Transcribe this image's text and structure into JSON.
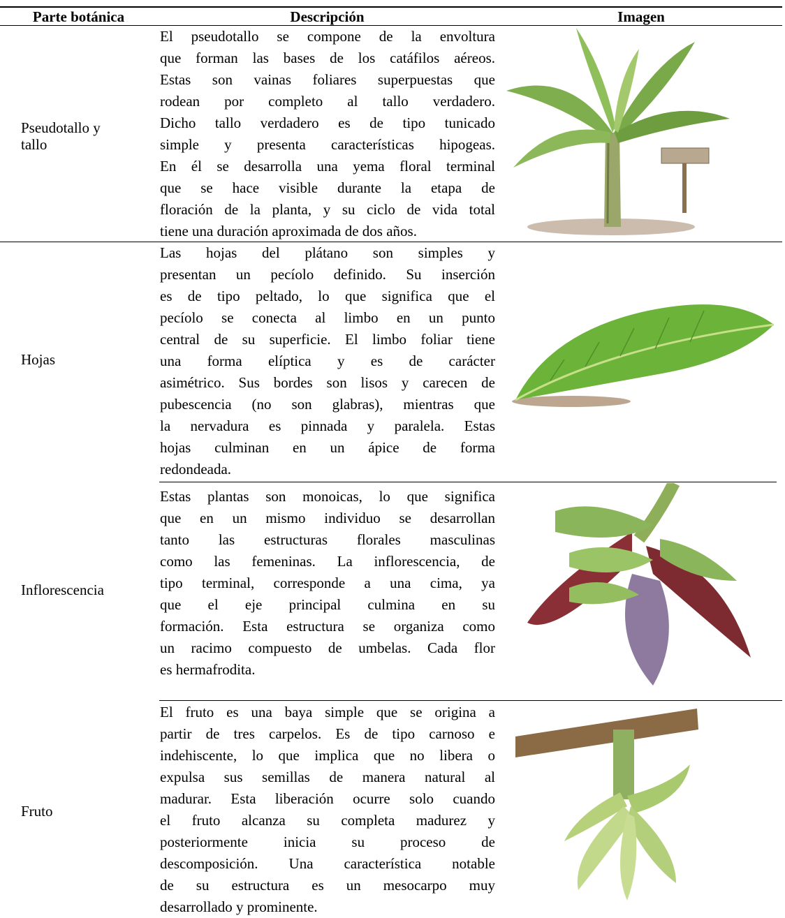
{
  "table": {
    "header": [
      "Parte botánica",
      "Descripción",
      "Imagen"
    ],
    "rows": [
      {
        "part": "Pseudotallo y tallo",
        "description": [
          "El pseudotallo se compone de la envoltura",
          "que forman las bases de los catáfilos aéreos.",
          "Estas son vainas foliares superpuestas que",
          "rodean por completo al tallo verdadero.",
          "Dicho tallo verdadero es de tipo tunicado",
          "simple y presenta características hipogeas.",
          "En él se desarrolla una yema floral terminal",
          "que se hace visible durante la etapa de",
          "floración de la planta, y su ciclo de vida total",
          "tiene una duración aproximada de dos años."
        ]
      },
      {
        "part": "Hojas",
        "description": [
          "Las hojas del plátano son simples y",
          "presentan un pecíolo definido. Su inserción",
          "es de tipo peltado, lo que significa que el",
          "pecíolo se conecta al limbo en un punto",
          "central de su superficie. El limbo foliar tiene",
          "una forma elíptica y es de carácter",
          "asimétrico. Sus bordes son lisos y carecen de",
          "pubescencia (no son glabras), mientras que",
          "la nervadura es pinnada y paralela. Estas",
          "hojas culminan en un ápice de forma",
          "redondeada."
        ]
      },
      {
        "part": "Inflorescencia",
        "description": [
          "Estas plantas son monoicas, lo que significa",
          "que en un mismo individuo se desarrollan",
          "tanto las estructuras florales masculinas",
          "como las femeninas. La inflorescencia, de",
          "tipo terminal, corresponde a una cima, ya",
          "que el eje principal culmina en su",
          "formación. Esta estructura se organiza como",
          "un racimo compuesto de umbelas. Cada flor",
          "es hermafrodita."
        ]
      },
      {
        "part": "Fruto",
        "description": [
          "El fruto es una baya simple que se origina a",
          "partir de tres carpelos. Es de tipo carnoso e",
          "indehiscente, lo que implica que no libera o",
          "expulsa sus semillas de manera natural al",
          "madurar. Esta liberación ocurre solo cuando",
          "el fruto alcanza su completa madurez y",
          "posteriormente inicia su proceso de",
          "descomposición. Una característica notable",
          "de su estructura es un mesocarpo muy",
          "desarrollado y prominente."
        ]
      }
    ]
  }
}
